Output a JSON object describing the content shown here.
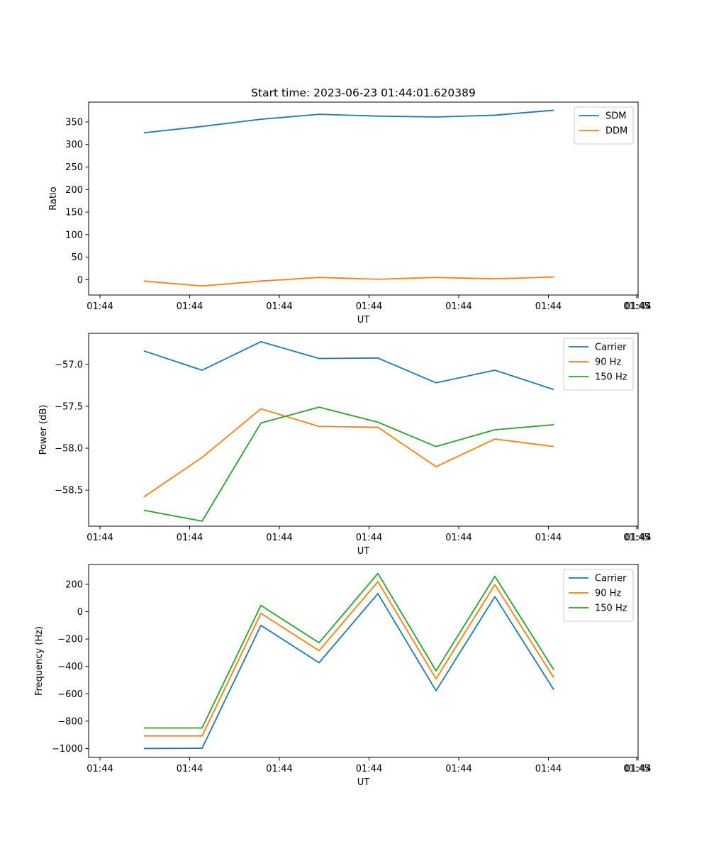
{
  "colors": {
    "blue": "#1f77b4",
    "orange": "#ff7f0e",
    "green": "#2ca02c"
  },
  "chart_data": [
    {
      "type": "line",
      "title": "Start time: 2023-06-23 01:44:01.620389",
      "xlabel": "UT",
      "ylabel": "Ratio",
      "x": [
        "01:44:02.0",
        "01:44:02.7",
        "01:44:03.4",
        "01:44:04.1",
        "01:44:04.8",
        "01:44:05.4",
        "01:44:06.1",
        "01:44:06.8"
      ],
      "x_ticks": [
        "01:44",
        "01:44",
        "01:44",
        "01:44",
        "01:44",
        "01:44",
        "01:44",
        "01:45"
      ],
      "ylim": [
        -34,
        394
      ],
      "y_ticks": [
        0,
        50,
        100,
        150,
        200,
        250,
        300,
        350
      ],
      "legend_position": "top-right",
      "series": [
        {
          "name": "SDM",
          "color": "#1f77b4",
          "values": [
            326,
            340,
            356,
            367,
            363,
            361,
            365,
            376
          ]
        },
        {
          "name": "DDM",
          "color": "#ff7f0e",
          "values": [
            -3,
            -14,
            -3,
            5,
            1,
            5,
            2,
            6
          ]
        }
      ]
    },
    {
      "type": "line",
      "xlabel": "UT",
      "ylabel": "Power (dB)",
      "x": [
        "01:44:02.0",
        "01:44:02.7",
        "01:44:03.4",
        "01:44:04.1",
        "01:44:04.8",
        "01:44:05.4",
        "01:44:06.1",
        "01:44:06.8"
      ],
      "x_ticks": [
        "01:44",
        "01:44",
        "01:44",
        "01:44",
        "01:44",
        "01:44",
        "01:44",
        "01:45"
      ],
      "ylim": [
        -58.93,
        -56.63
      ],
      "y_ticks": [
        -57.0,
        -57.5,
        -58.0,
        -58.5
      ],
      "y_tick_labels": [
        "−57.0",
        "−57.5",
        "−58.0",
        "−58.5"
      ],
      "legend_position": "top-right",
      "series": [
        {
          "name": "Carrier",
          "color": "#1f77b4",
          "values": [
            -56.84,
            -57.07,
            -56.73,
            -56.93,
            -56.925,
            -57.22,
            -57.07,
            -57.3
          ]
        },
        {
          "name": "90 Hz",
          "color": "#ff7f0e",
          "values": [
            -58.58,
            -58.11,
            -57.53,
            -57.74,
            -57.75,
            -58.22,
            -57.89,
            -57.98
          ]
        },
        {
          "name": "150 Hz",
          "color": "#2ca02c",
          "values": [
            -58.74,
            -58.87,
            -57.7,
            -57.51,
            -57.69,
            -57.98,
            -57.78,
            -57.72
          ]
        }
      ]
    },
    {
      "type": "line",
      "xlabel": "UT",
      "ylabel": "Frequency (Hz)",
      "x": [
        "01:44:02.0",
        "01:44:02.7",
        "01:44:03.4",
        "01:44:04.1",
        "01:44:04.8",
        "01:44:05.4",
        "01:44:06.1",
        "01:44:06.8"
      ],
      "x_ticks": [
        "01:44",
        "01:44",
        "01:44",
        "01:44",
        "01:44",
        "01:44",
        "01:44",
        "01:45"
      ],
      "ylim": [
        -1065,
        345
      ],
      "y_ticks": [
        200,
        0,
        -200,
        -400,
        -600,
        -800,
        -1000
      ],
      "y_tick_labels": [
        "200",
        "0",
        "−200",
        "−400",
        "−600",
        "−800",
        "−1000"
      ],
      "legend_position": "top-right",
      "series": [
        {
          "name": "Carrier",
          "color": "#1f77b4",
          "values": [
            -1000,
            -998,
            -100,
            -373,
            132,
            -578,
            110,
            -570
          ]
        },
        {
          "name": "90 Hz",
          "color": "#ff7f0e",
          "values": [
            -908,
            -908,
            -12,
            -285,
            220,
            -490,
            198,
            -482
          ]
        },
        {
          "name": "150 Hz",
          "color": "#2ca02c",
          "values": [
            -850,
            -850,
            46,
            -227,
            280,
            -432,
            258,
            -424
          ]
        }
      ]
    }
  ]
}
